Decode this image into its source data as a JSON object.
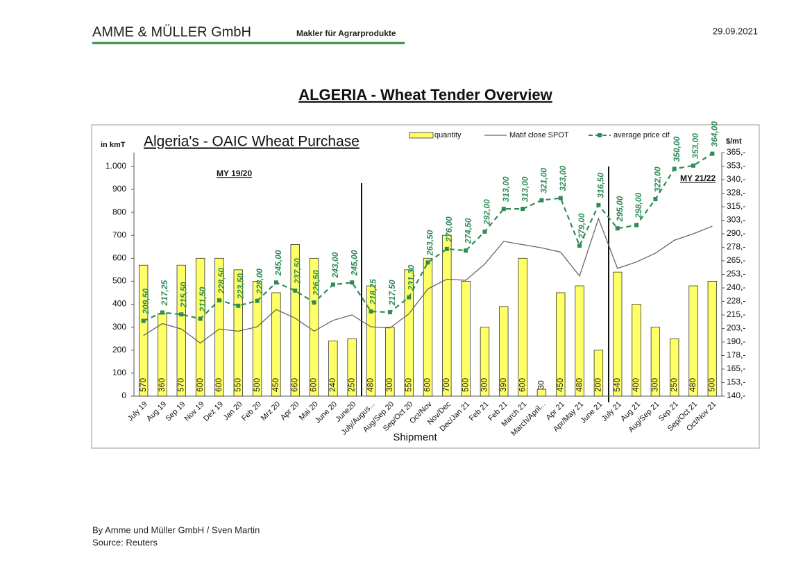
{
  "header": {
    "company": "AMME & MÜLLER GmbH",
    "tagline": "Makler für Agrarprodukte",
    "date": "29.09.2021"
  },
  "page_title": "ALGERIA - Wheat Tender Overview",
  "chart_data": {
    "type": "combo",
    "title": "Algeria's - OAIC Wheat Purchase",
    "y_label": "in kmT",
    "y2_label": "$/mt",
    "x_label": "Shipment",
    "annotations": [
      "MY 19/20",
      "MY 21/22"
    ],
    "categories": [
      "July 19",
      "Aug 19",
      "Sep 19",
      "Nov 19",
      "Dez 19",
      "Jan 20",
      "Feb 20",
      "Mrz 20",
      "Apr 20",
      "Mai 20",
      "June 20",
      "June20",
      "July/Augus...",
      "Aug/Sep 20",
      "Sep/Oct 20",
      "Oct/Nov",
      "Nov/Dec",
      "Dec/Jan 21",
      "Feb 21",
      "Feb 21",
      "March 21",
      "March/April...",
      "Apr 21",
      "Apr/May 21",
      "June 21",
      "July 21",
      "Aug 21",
      "Aug/Sep 21",
      "Sep 21",
      "Sep/Oct 21",
      "Oct/Nov 21"
    ],
    "series": [
      {
        "name": "quantity",
        "type": "bar",
        "color": "#ffff66",
        "values": [
          570,
          360,
          570,
          600,
          600,
          550,
          500,
          450,
          660,
          600,
          240,
          250,
          480,
          300,
          550,
          600,
          700,
          500,
          300,
          390,
          600,
          30,
          450,
          480,
          200,
          540,
          400,
          300,
          250,
          480,
          500
        ]
      },
      {
        "name": "Matif close SPOT",
        "type": "line",
        "axis": "y2",
        "color": "#666666",
        "values": [
          196,
          207,
          202,
          189,
          202,
          200,
          204,
          220,
          212,
          200,
          210,
          215,
          204,
          203,
          216,
          239,
          248,
          247,
          262,
          283,
          280,
          277,
          273,
          251,
          304,
          258,
          264,
          272,
          284,
          290,
          297
        ]
      },
      {
        "name": "average price cif",
        "type": "line",
        "axis": "y2",
        "color": "#2e8b57",
        "dashed": true,
        "marker": "square",
        "values": [
          209.5,
          217.25,
          215.5,
          211.5,
          228.5,
          223.5,
          228,
          245,
          237.5,
          226.5,
          243,
          245,
          218.25,
          217.5,
          231.3,
          263.5,
          276,
          274.5,
          292,
          313,
          313,
          321,
          323,
          279,
          316.5,
          295,
          298,
          322,
          350,
          353,
          364
        ],
        "value_labels": [
          "209,50",
          "217,25",
          "215,50",
          "211,50",
          "228,50",
          "223,50",
          "228,00",
          "245,00",
          "237,50",
          "226,50",
          "243,00",
          "245,00",
          "218,25",
          "217,50",
          "231,30",
          "263,50",
          "276,00",
          "274,50",
          "292,00",
          "313,00",
          "313,00",
          "321,00",
          "323,00",
          "279,00",
          "316,50",
          "295,00",
          "298,00",
          "322,00",
          "350,00",
          "353,00",
          "364,00"
        ]
      }
    ],
    "ylim": [
      0,
      1060
    ],
    "yticks": [
      0,
      100,
      200,
      300,
      400,
      500,
      600,
      700,
      800,
      900,
      {
        "value": 1000,
        "label": "1.000"
      }
    ],
    "y2lim": [
      140,
      365
    ],
    "y2ticks": [
      {
        "value": 140,
        "label": "140,-"
      },
      {
        "value": 152.5,
        "label": "153,-"
      },
      {
        "value": 165,
        "label": "165,-"
      },
      {
        "value": 177.5,
        "label": "178,-"
      },
      {
        "value": 190,
        "label": "190,-"
      },
      {
        "value": 202.5,
        "label": "203,-"
      },
      {
        "value": 215,
        "label": "215,-"
      },
      {
        "value": 227.5,
        "label": "228,-"
      },
      {
        "value": 240,
        "label": "240,-"
      },
      {
        "value": 252.5,
        "label": "253,-"
      },
      {
        "value": 265,
        "label": "265,-"
      },
      {
        "value": 277.5,
        "label": "278,-"
      },
      {
        "value": 290,
        "label": "290,-"
      },
      {
        "value": 302.5,
        "label": "303,-"
      },
      {
        "value": 315,
        "label": "315,-"
      },
      {
        "value": 327.5,
        "label": "328,-"
      },
      {
        "value": 340,
        "label": "340,-"
      },
      {
        "value": 352.5,
        "label": "353,-"
      },
      {
        "value": 365,
        "label": "365,-"
      }
    ],
    "legend": "top-right",
    "grid": false
  },
  "footer": [
    "By Amme und Müller GmbH / Sven Martin",
    "Source: Reuters"
  ]
}
